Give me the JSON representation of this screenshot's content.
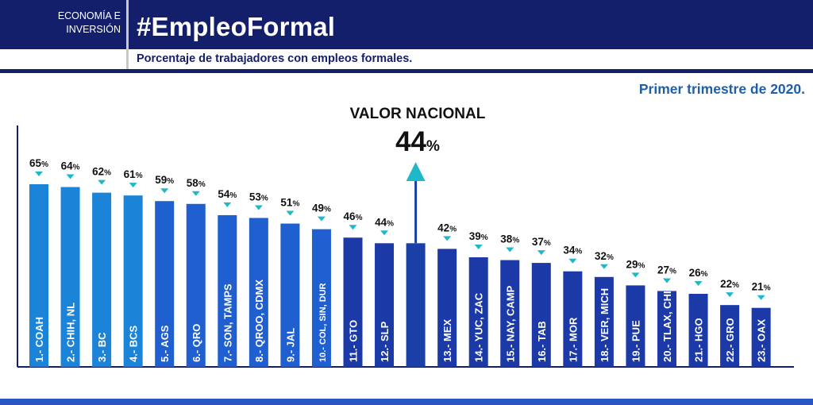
{
  "header": {
    "section_line1": "ECONOMÍA E",
    "section_line2": "INVERSIÓN",
    "hashtag": "#EmpleoFormal",
    "subtitle": "Porcentaje de trabajadores con empleos formales.",
    "period": "Primer trimestre de 2020."
  },
  "colors": {
    "navy": "#131f6b",
    "bar_light": "#1c84d8",
    "bar_mid": "#1f5fd0",
    "bar_dark": "#1b3aa8",
    "arrow_teal": "#1fb8c8",
    "national_bar": "#1a3fa6"
  },
  "chart_data": {
    "type": "bar",
    "unit": "%",
    "ylim": [
      0,
      70
    ],
    "national": {
      "label": "VALOR NACIONAL",
      "value": 44,
      "value_text": "44",
      "unit_text": "%"
    },
    "categories": [
      "1.- COAH",
      "2.- CHIH, NL",
      "3.- BC",
      "4.- BCS",
      "5.- AGS",
      "6.- QRO",
      "7.- SON, TAMPS",
      "8.- QROO, CDMX",
      "9.- JAL",
      "10.- COL, SIN, DUR",
      "11.- GTO",
      "12.- SLP",
      "",
      "13.- MEX",
      "14.- YUC, ZAC",
      "15.- NAY, CAMP",
      "16.- TAB",
      "17.- MOR",
      "18.- VER, MICH",
      "19.- PUE",
      "20.- TLAX, CHIS",
      "21.- HGO",
      "22.- GRO",
      "23.- OAX"
    ],
    "values": [
      65,
      64,
      62,
      61,
      59,
      58,
      54,
      53,
      51,
      49,
      46,
      44,
      44,
      42,
      39,
      38,
      37,
      34,
      32,
      29,
      27,
      26,
      22,
      21
    ],
    "value_labels": [
      "65",
      "64",
      "62",
      "61",
      "59",
      "58",
      "54",
      "53",
      "51",
      "49",
      "46",
      "44",
      "",
      "42",
      "39",
      "38",
      "37",
      "34",
      "32",
      "29",
      "27",
      "26",
      "22",
      "21"
    ],
    "label_suffix": "%",
    "national_index": 12
  }
}
